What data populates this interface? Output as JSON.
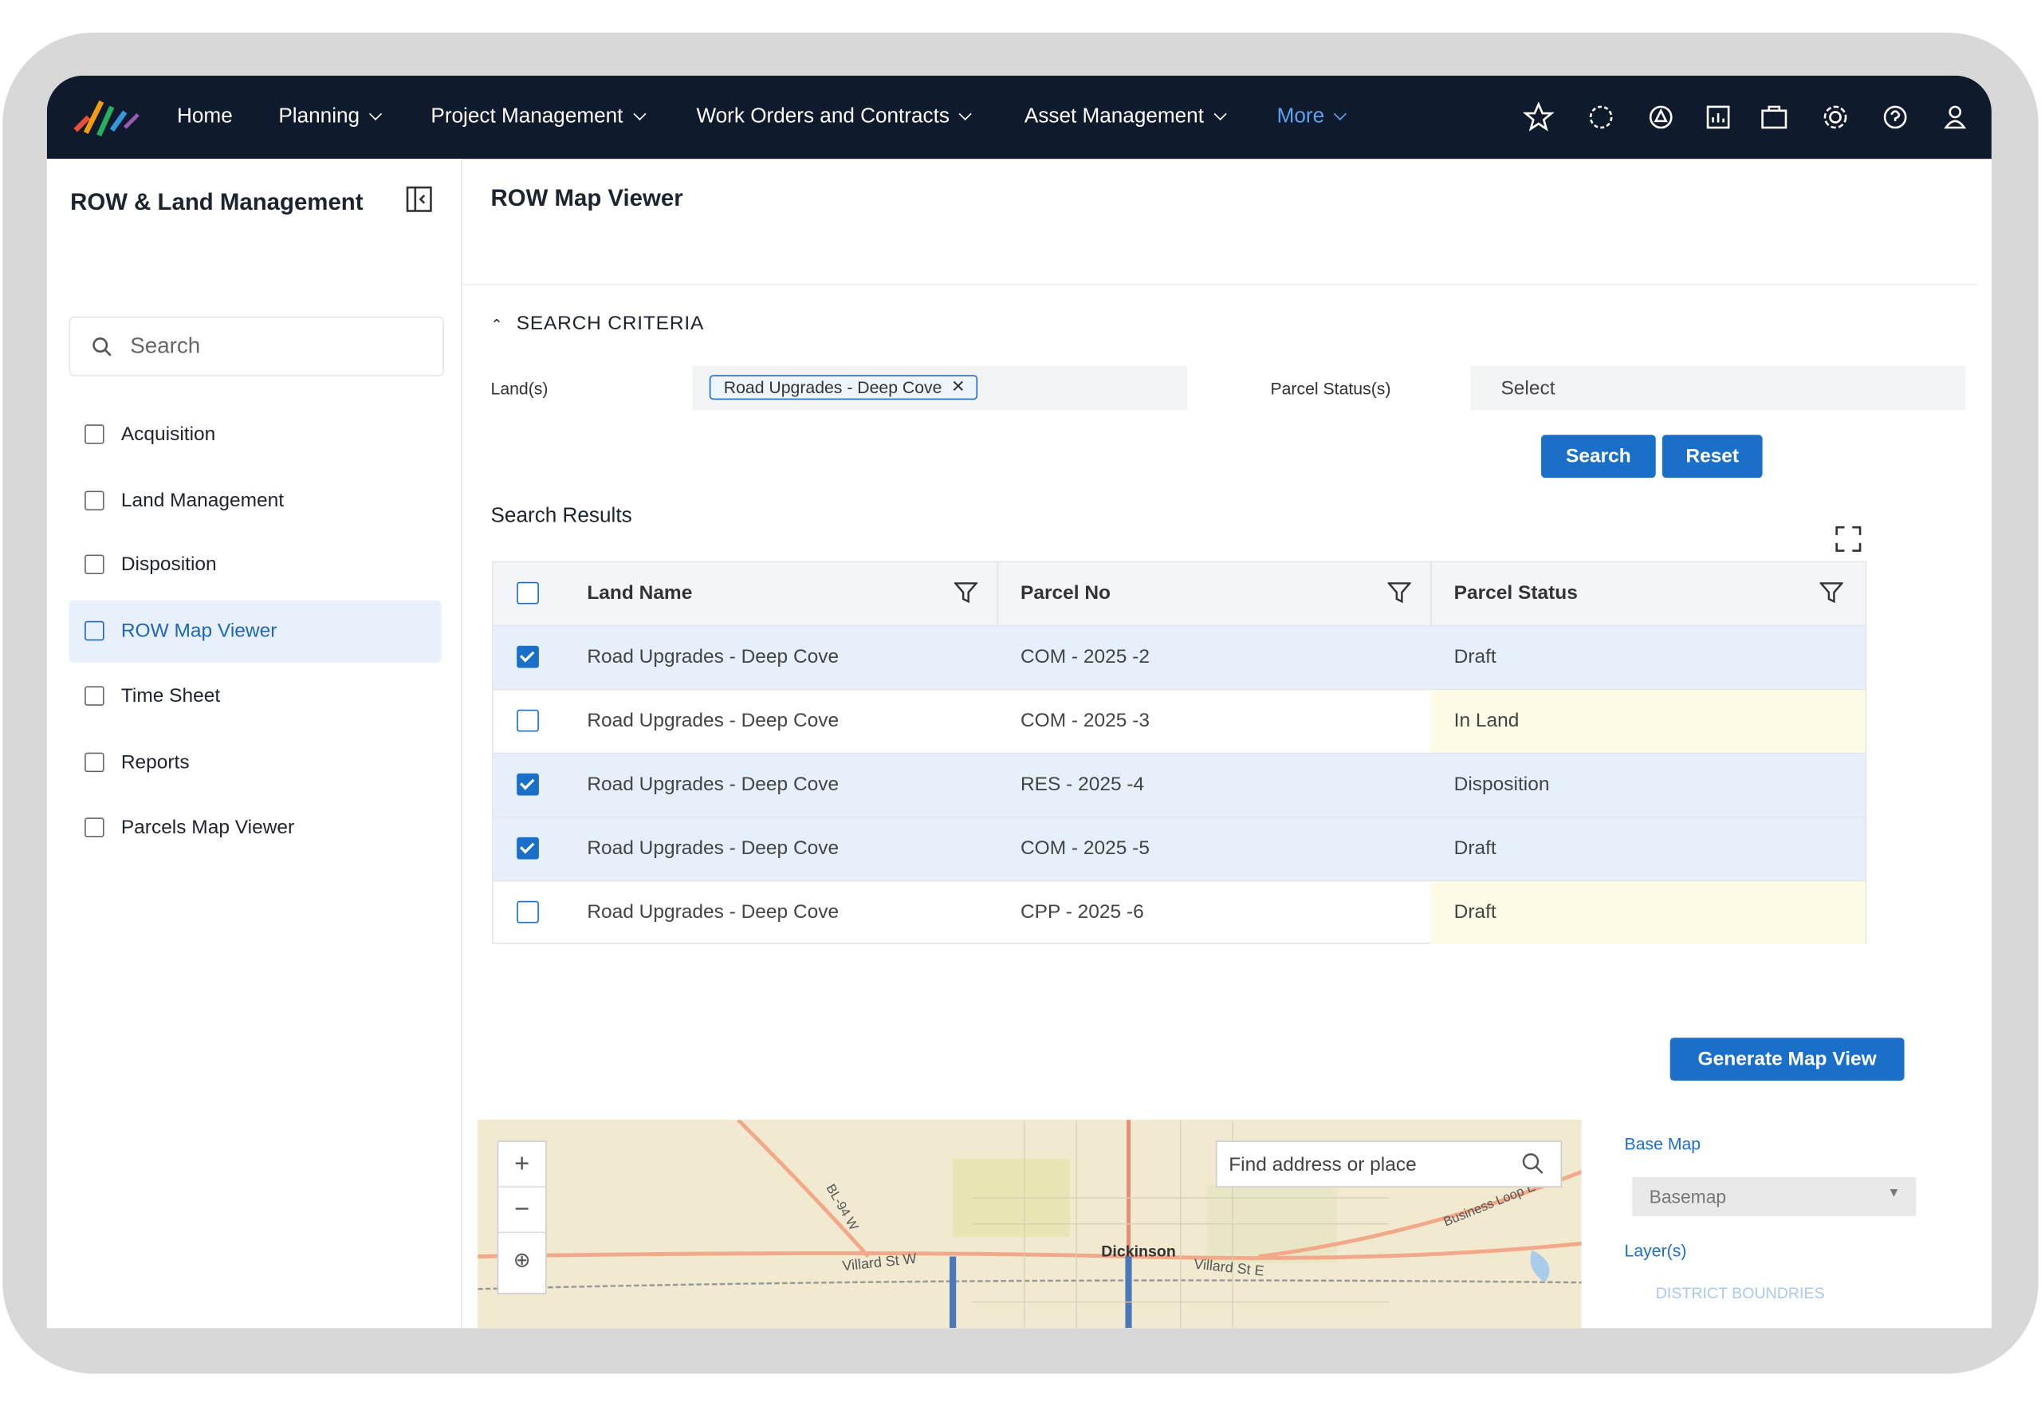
{
  "nav": {
    "items": [
      "Home",
      "Planning",
      "Project Management",
      "Work Orders and Contracts",
      "Asset Management",
      "More"
    ]
  },
  "sidebar": {
    "title": "ROW & Land Management",
    "search_placeholder": "Search",
    "items": [
      "Acquisition",
      "Land Management",
      "Disposition",
      "ROW Map Viewer",
      "Time Sheet",
      "Reports",
      "Parcels Map Viewer"
    ]
  },
  "page": {
    "title": "ROW Map Viewer",
    "section": "SEARCH CRITERIA",
    "land_label": "Land(s)",
    "land_tag": "Road Upgrades - Deep Cove",
    "status_label": "Parcel Status(s)",
    "status_placeholder": "Select",
    "search_button": "Search",
    "reset_button": "Reset",
    "results_title": "Search Results",
    "generate_button": "Generate Map View"
  },
  "table": {
    "columns": [
      "Land Name",
      "Parcel No",
      "Parcel Status"
    ],
    "rows": [
      [
        "Road Upgrades - Deep Cove",
        "COM - 2025 -2",
        "Draft"
      ],
      [
        "Road Upgrades - Deep Cove",
        "COM - 2025 -3",
        "In Land"
      ],
      [
        "Road Upgrades - Deep Cove",
        "RES - 2025 -4",
        "Disposition"
      ],
      [
        "Road Upgrades - Deep Cove",
        "COM - 2025 -5",
        "Draft"
      ],
      [
        "Road Upgrades - Deep Cove",
        "CPP - 2025 -6",
        "Draft"
      ]
    ]
  },
  "map": {
    "search_placeholder": "Find address or place",
    "labels": [
      "Dickinson",
      "Villard St W",
      "Villard St E",
      "BL-94 W",
      "Business Loop E"
    ]
  },
  "map_panel": {
    "base_map_label": "Base Map",
    "base_map_value": "Basemap",
    "layers_label": "Layer(s)",
    "layers": [
      "DISTRICT BOUNDRIES"
    ]
  }
}
